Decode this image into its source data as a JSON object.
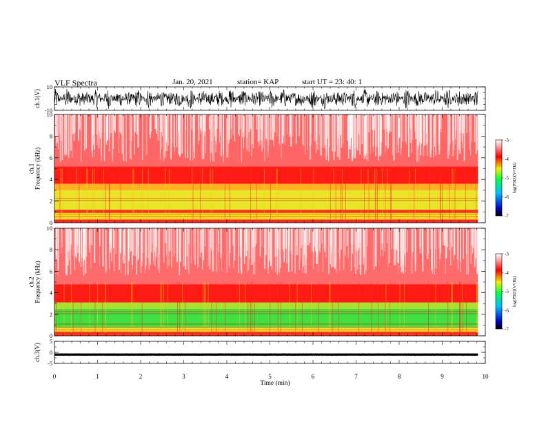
{
  "header": {
    "title": "VLF Spectra",
    "date": "Jan. 20, 2021",
    "station": "station= KAP",
    "start": "start  UT =   23: 40: 1"
  },
  "chart_data": [
    {
      "type": "line",
      "name": "ch1-waveform",
      "ylabel": "ch.1(V)",
      "ylim": [
        -10,
        10
      ],
      "yticks": [
        "10",
        "-10"
      ],
      "xlim": [
        0,
        10
      ],
      "x_end": 9.83,
      "description": "dense noisy waveform, amplitude ~ +/-9 V",
      "trace_color": "#000000"
    },
    {
      "type": "heatmap",
      "name": "ch1-spectrogram",
      "ylabel": "ch.1\nFrequency (kHz)",
      "ylim": [
        0,
        10
      ],
      "yticks": [
        "0",
        "2",
        "4",
        "6",
        "8",
        "10"
      ],
      "xlim": [
        0,
        10
      ],
      "x_end": 9.83,
      "bands": [
        {
          "f0": 0.0,
          "f1": 0.3,
          "color": "#ff2a1e"
        },
        {
          "f0": 0.3,
          "f1": 0.9,
          "color": "#f0e020"
        },
        {
          "f0": 0.9,
          "f1": 1.2,
          "color": "#ff3a20"
        },
        {
          "f0": 1.2,
          "f1": 3.0,
          "color": "#e8e428"
        },
        {
          "f0": 3.0,
          "f1": 3.6,
          "color": "#ffb020"
        },
        {
          "f0": 3.6,
          "f1": 5.2,
          "color": "#ff1a14"
        },
        {
          "f0": 5.2,
          "f1": 10.0,
          "color": "#ff6666"
        }
      ],
      "colorbar": {
        "label": "log(PSD)(V²/Hz)",
        "ticks": [
          "-3",
          "-4",
          "-5",
          "-6",
          "-7"
        ],
        "range": [
          -7,
          -3
        ]
      }
    },
    {
      "type": "heatmap",
      "name": "ch2-spectrogram",
      "ylabel": "ch.2\nFrequency (kHz)",
      "ylim": [
        0,
        10
      ],
      "yticks": [
        "0",
        "2",
        "4",
        "6",
        "8",
        "10"
      ],
      "xlim": [
        0,
        10
      ],
      "x_end": 9.83,
      "bands": [
        {
          "f0": 0.0,
          "f1": 0.4,
          "color": "#ff3a20"
        },
        {
          "f0": 0.4,
          "f1": 0.8,
          "color": "#f0e020"
        },
        {
          "f0": 0.8,
          "f1": 2.5,
          "color": "#40e040"
        },
        {
          "f0": 2.5,
          "f1": 3.1,
          "color": "#a8e030"
        },
        {
          "f0": 3.1,
          "f1": 4.8,
          "color": "#ff1a14"
        },
        {
          "f0": 4.8,
          "f1": 10.0,
          "color": "#ff6a6a"
        }
      ],
      "colorbar": {
        "label": "log(PSD)(V²/Hz)",
        "ticks": [
          "-3",
          "-4",
          "-5",
          "-6",
          "-7"
        ],
        "range": [
          -7,
          -3
        ]
      }
    },
    {
      "type": "line",
      "name": "ch3-waveform",
      "ylabel": "ch.3(V)",
      "ylim": [
        -5,
        5
      ],
      "yticks": [
        "5",
        "0",
        "-5"
      ],
      "xlim": [
        0,
        10
      ],
      "x_end": 9.83,
      "description": "narrow band around -1 V",
      "level": -1,
      "trace_color": "#000000"
    }
  ],
  "x_axis": {
    "label": "Time (min)",
    "ticks": [
      "0",
      "1",
      "2",
      "3",
      "4",
      "5",
      "6",
      "7",
      "8",
      "9",
      "10"
    ]
  }
}
